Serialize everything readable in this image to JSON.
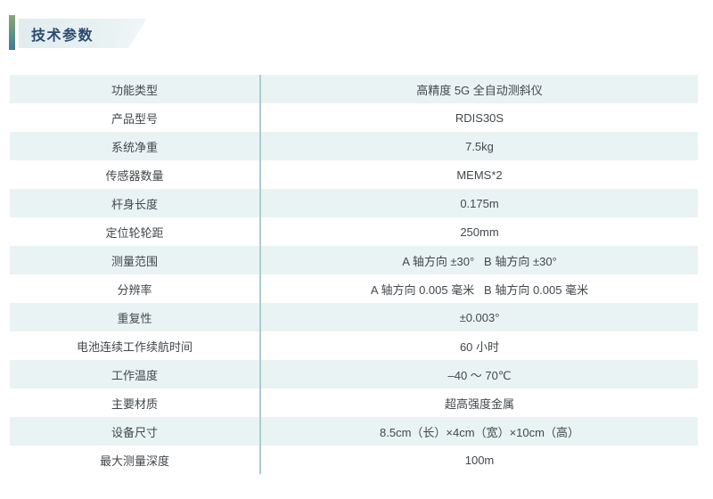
{
  "header": {
    "title": "技术参数"
  },
  "colors": {
    "accent_bar_top": "#8aa477",
    "accent_bar_bottom": "#44789a",
    "badge_background": "#e6f0f2",
    "title_text": "#2b4a6e",
    "row_shade": "#e9f3f4",
    "divider": "#a9cdd1",
    "body_text": "#43484d"
  },
  "table": {
    "rows": [
      {
        "label": "功能类型",
        "value": "高精度 5G 全自动测斜仪"
      },
      {
        "label": "产品型号",
        "value": "RDIS30S"
      },
      {
        "label": "系统净重",
        "value": "7.5kg"
      },
      {
        "label": "传感器数量",
        "value": "MEMS*2"
      },
      {
        "label": "杆身长度",
        "value": "0.175m"
      },
      {
        "label": "定位轮轮距",
        "value": "250mm"
      },
      {
        "label": "测量范围",
        "value": "A 轴方向 ±30°   B 轴方向 ±30°"
      },
      {
        "label": "分辨率",
        "value": "A 轴方向 0.005 毫米   B 轴方向 0.005 毫米"
      },
      {
        "label": "重复性",
        "value": "±0.003°"
      },
      {
        "label": "电池连续工作续航时间",
        "value": "60 小时"
      },
      {
        "label": "工作温度",
        "value": "–40 ～ 70℃"
      },
      {
        "label": "主要材质",
        "value": "超高强度金属"
      },
      {
        "label": "设备尺寸",
        "value": "8.5cm（长）×4cm（宽）×10cm（高）"
      },
      {
        "label": "最大测量深度",
        "value": "100m"
      }
    ]
  }
}
